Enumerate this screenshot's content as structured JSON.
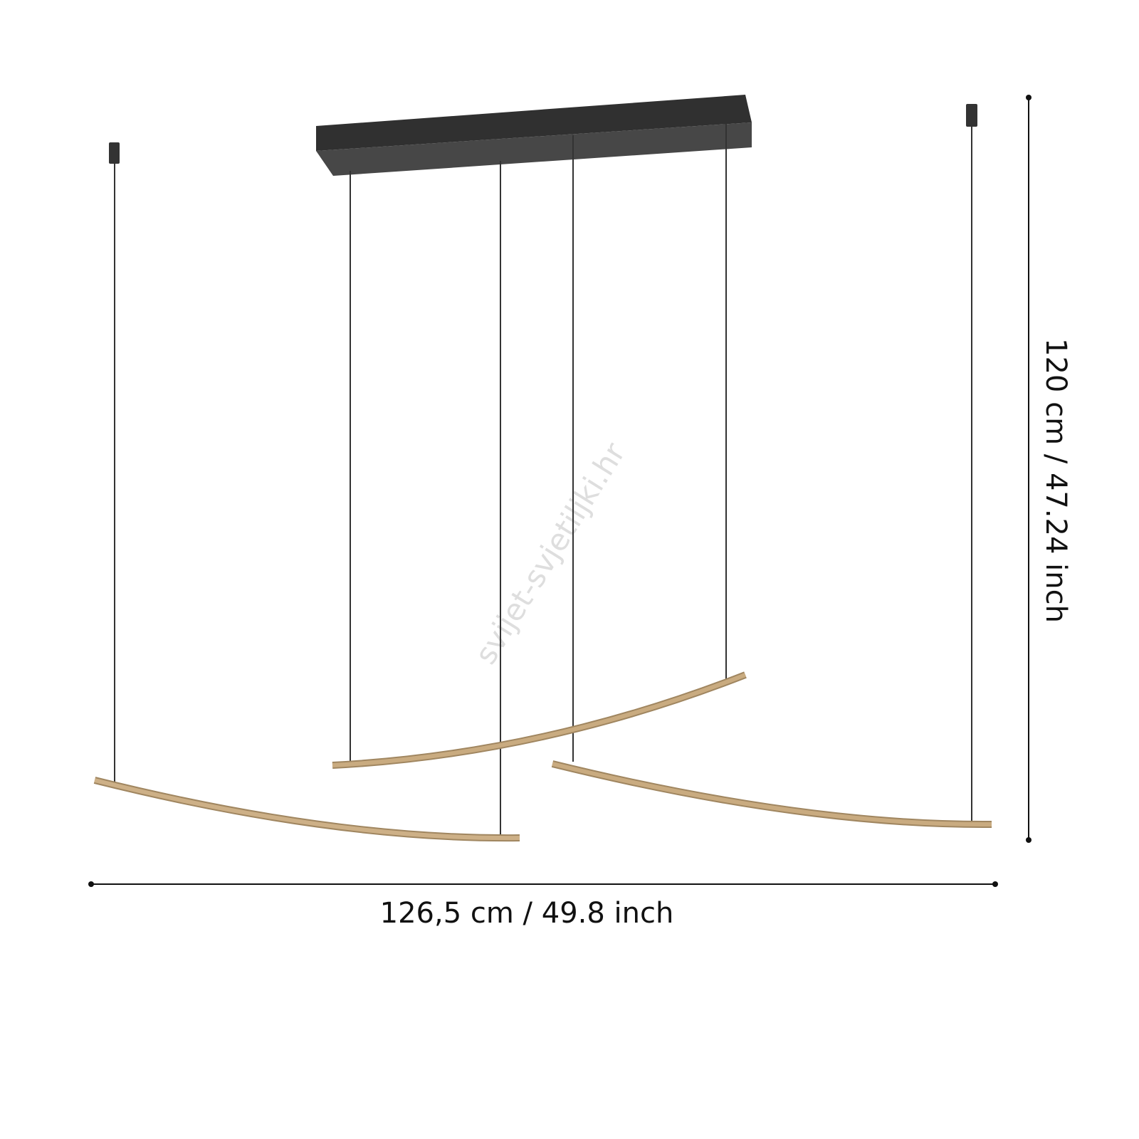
{
  "dimensions": {
    "width_label": "126,5 cm / 49.8 inch",
    "height_label": "120 cm / 47.24 inch"
  },
  "watermark": "svijet-svjetiljki.hr",
  "colors": {
    "canopy_top": "#303030",
    "canopy_bottom": "#474747",
    "wire": "#333333",
    "bar": "#c8ab80",
    "bar_edge": "#a08660",
    "dimension_line": "#111111"
  }
}
